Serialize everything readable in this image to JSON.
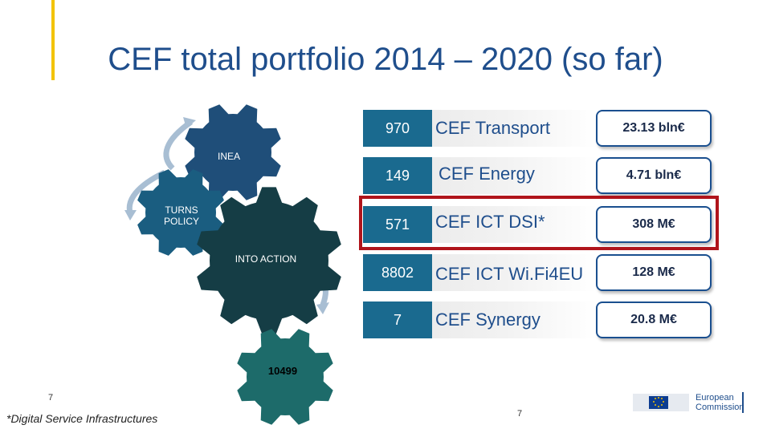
{
  "title": "CEF total portfolio 2014 – 2020 (so far)",
  "gears": {
    "inea": "INEA",
    "turns_policy": "TURNS POLICY",
    "into_action": "INTO ACTION",
    "total": "10499"
  },
  "rows": [
    {
      "count": "970",
      "label": "CEF Transport",
      "amount": "23.13 bln€"
    },
    {
      "count": "149",
      "label": "CEF Energy",
      "amount": "4.71 bln€"
    },
    {
      "count": "571",
      "label": "CEF ICT DSI*",
      "amount": "308 M€"
    },
    {
      "count": "8802",
      "label": "CEF ICT Wi.Fi4EU",
      "amount": "128 M€"
    },
    {
      "count": "7",
      "label": "CEF Synergy",
      "amount": "20.8 M€"
    }
  ],
  "footnote": "*Digital Service Infrastructures",
  "left_page_num": "7",
  "center_page_num": "7",
  "logo": {
    "line1": "European",
    "line2": "Commission"
  },
  "colors": {
    "title": "#1f4e8c",
    "tab": "#1a6a8f",
    "highlight": "#b0141b",
    "accent": "#f3c300"
  }
}
